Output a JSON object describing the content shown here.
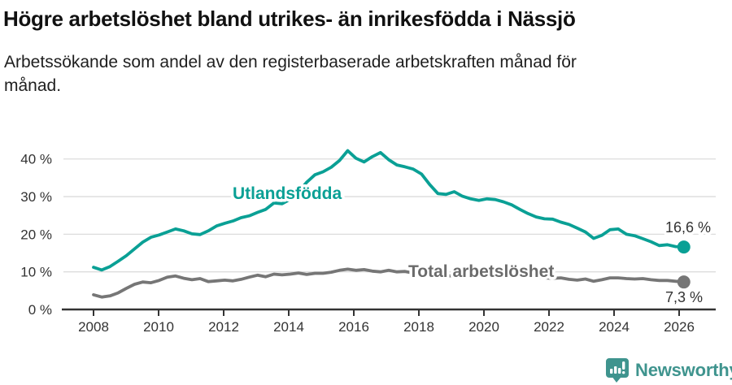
{
  "header": {
    "title": "Högre arbetslöshet bland utrikes- än inrikesfödda i Nässjö",
    "subtitle_lines": [
      "Arbetssökande som andel av den registerbaserade arbetskraften månad för",
      "månad."
    ]
  },
  "footer": {
    "brand": "Newsworthy",
    "logo_icon": "bar-chart-speech-bubble"
  },
  "colors": {
    "accent_teal": "#0aa095",
    "line_gray": "#767676",
    "label_gray": "#6b6b6b",
    "grid": "#dcdcdc",
    "axis": "#333333",
    "tick_text": "#333333",
    "logo_teal": "#3f948e"
  },
  "chart_data": {
    "type": "line",
    "title": "Högre arbetslöshet bland utrikes- än inrikesfödda i Nässjö",
    "xlabel": "",
    "ylabel": "",
    "x_start": 2008.0,
    "x_step": 0.25,
    "x_ticks": [
      2008,
      2010,
      2012,
      2014,
      2016,
      2018,
      2020,
      2022,
      2024,
      2026
    ],
    "y_tick_labels": [
      "0 %",
      "10 %",
      "20 %",
      "30 %",
      "40 %"
    ],
    "y_tick_values": [
      0,
      10,
      20,
      30,
      40
    ],
    "ylim": [
      0,
      44
    ],
    "grid": "horizontal",
    "legend_position": "inline-labels",
    "series": [
      {
        "name": "Utlandsfödda",
        "color": "#0aa095",
        "end_label": "16,6 %",
        "end_value": 16.6,
        "values": [
          11.2,
          10.5,
          11.4,
          12.8,
          14.3,
          16.1,
          17.9,
          19.2,
          19.8,
          20.6,
          21.4,
          20.9,
          20.1,
          19.9,
          20.9,
          22.2,
          22.9,
          23.5,
          24.4,
          24.9,
          25.8,
          26.6,
          28.3,
          28.1,
          29.3,
          31.2,
          33.8,
          35.8,
          36.6,
          37.8,
          39.6,
          42.2,
          40.2,
          39.2,
          40.6,
          41.7,
          39.8,
          38.4,
          37.9,
          37.3,
          36.0,
          33.2,
          30.8,
          30.6,
          31.3,
          30.1,
          29.4,
          29.0,
          29.4,
          29.2,
          28.6,
          27.8,
          26.6,
          25.5,
          24.6,
          24.1,
          24.0,
          23.2,
          22.6,
          21.6,
          20.6,
          18.9,
          19.7,
          21.2,
          21.4,
          20.0,
          19.6,
          18.8,
          18.0,
          17.0,
          17.2,
          16.7,
          16.6
        ]
      },
      {
        "name": "Total arbetslöshet",
        "color": "#767676",
        "end_label": "7,3 %",
        "end_value": 7.3,
        "values": [
          3.9,
          3.3,
          3.6,
          4.4,
          5.6,
          6.7,
          7.3,
          7.1,
          7.7,
          8.6,
          8.9,
          8.3,
          7.9,
          8.2,
          7.4,
          7.6,
          7.8,
          7.6,
          8.0,
          8.6,
          9.1,
          8.7,
          9.4,
          9.2,
          9.4,
          9.7,
          9.3,
          9.6,
          9.6,
          9.9,
          10.4,
          10.7,
          10.4,
          10.6,
          10.2,
          10.0,
          10.4,
          10.0,
          10.1,
          9.7,
          9.3,
          9.0,
          8.8,
          8.9,
          9.0,
          9.2,
          9.3,
          9.6,
          10.1,
          10.5,
          10.2,
          9.8,
          9.3,
          8.9,
          8.6,
          8.4,
          8.3,
          8.4,
          8.0,
          7.8,
          8.1,
          7.5,
          7.9,
          8.4,
          8.4,
          8.2,
          8.1,
          8.2,
          7.9,
          7.7,
          7.7,
          7.5,
          7.3
        ]
      }
    ]
  }
}
